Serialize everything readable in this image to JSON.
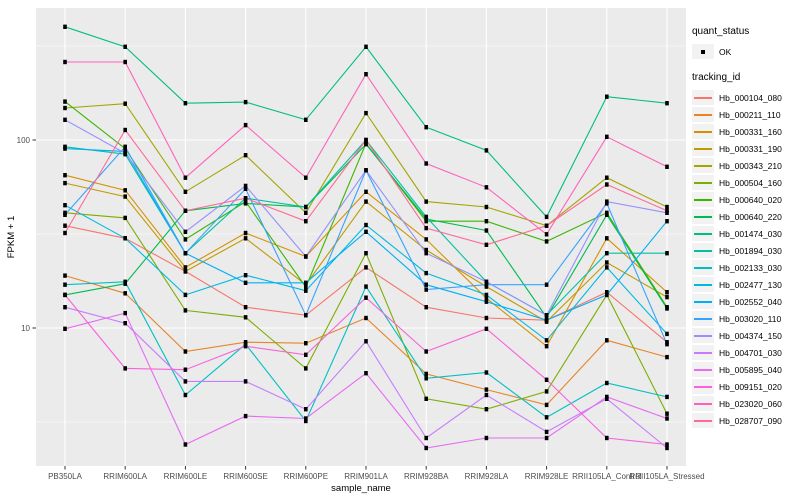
{
  "legend": {
    "quant_status_title": "quant_status",
    "quant_status_items": [
      {
        "label": "OK",
        "marker": "black-square"
      }
    ],
    "tracking_title": "tracking_id"
  },
  "chart_data": {
    "type": "line",
    "title": "",
    "xlabel": "sample_name",
    "ylabel": "FPKM + 1",
    "y_scale": "log10",
    "y_tick_values": [
      10,
      100
    ],
    "y_tick_labels": [
      "10",
      "100"
    ],
    "y_minor_gridlines": [
      3.162,
      31.623,
      316.228
    ],
    "ylim": [
      1.9,
      520
    ],
    "grid": true,
    "legend_position": "right",
    "point_marker": "filled-black-square",
    "panel_background": "#EBEBEB",
    "gridline_color": "#FFFFFF",
    "tick_label_color": "#4D4D4D",
    "categories": [
      "PB350LA",
      "RRIM600LA",
      "RRIM600LE",
      "RRIM600SE",
      "RRIM600PE",
      "RRIM901LA",
      "RRIM928BA",
      "RRIM928LA",
      "RRIM928LE",
      "RRII105LA_Control",
      "RRII105LA_Stressed"
    ],
    "series": [
      {
        "name": "Hb_000104_080",
        "color": "#F8766D",
        "values": [
          35,
          30,
          20,
          12.9,
          11.7,
          21,
          12.9,
          11.3,
          11,
          15.5,
          8.4
        ]
      },
      {
        "name": "Hb_000211_110",
        "color": "#E88526",
        "values": [
          19,
          15.3,
          7.5,
          8.4,
          8.3,
          11.3,
          5.7,
          4.7,
          3.9,
          8.6,
          7
        ]
      },
      {
        "name": "Hb_000331_160",
        "color": "#D89000",
        "values": [
          65,
          54,
          21,
          32,
          24,
          53,
          29.6,
          14.4,
          8,
          30,
          15.5
        ]
      },
      {
        "name": "Hb_000331_190",
        "color": "#C09B00",
        "values": [
          59,
          50,
          20,
          30,
          17,
          47,
          26,
          16.6,
          10.8,
          22.3,
          14.6
        ]
      },
      {
        "name": "Hb_000343_210",
        "color": "#A3A500",
        "values": [
          148,
          156,
          53,
          83,
          41,
          139,
          47,
          44,
          35,
          63,
          44
        ]
      },
      {
        "name": "Hb_000504_160",
        "color": "#7CAE00",
        "values": [
          41,
          38.5,
          12.4,
          11.4,
          6.1,
          25,
          4.2,
          3.7,
          4.6,
          15,
          3.5
        ]
      },
      {
        "name": "Hb_000640_020",
        "color": "#39B600",
        "values": [
          160,
          90,
          29.6,
          47,
          16.5,
          96,
          37,
          37,
          28.9,
          41,
          12.9
        ]
      },
      {
        "name": "Hb_000640_220",
        "color": "#00BB4E",
        "values": [
          15,
          17.2,
          42,
          46,
          44,
          95,
          38,
          33,
          11.4,
          40,
          12.7
        ]
      },
      {
        "name": "Hb_001474_030",
        "color": "#00BF7D",
        "values": [
          400,
          313,
          157,
          159,
          128,
          313,
          117,
          88,
          39,
          170,
          157
        ]
      },
      {
        "name": "Hb_001894_030",
        "color": "#00C1A3",
        "values": [
          92,
          84,
          25,
          49,
          44,
          100,
          39,
          17.6,
          11.7,
          25,
          25
        ]
      },
      {
        "name": "Hb_002133_030",
        "color": "#00BFC4",
        "values": [
          17,
          17.6,
          4.4,
          8.2,
          3.2,
          16.6,
          5.4,
          5.8,
          3.35,
          5.1,
          4.3
        ]
      },
      {
        "name": "Hb_002477_130",
        "color": "#00BAE0",
        "values": [
          45,
          30,
          15,
          19.1,
          15.8,
          35.3,
          19.6,
          15,
          8.6,
          21,
          9.3
        ]
      },
      {
        "name": "Hb_002552_040",
        "color": "#00B0F6",
        "values": [
          90,
          87,
          25,
          17.4,
          17.4,
          32.5,
          17,
          13.8,
          11,
          15,
          37
        ]
      },
      {
        "name": "Hb_003020_110",
        "color": "#35A2FF",
        "values": [
          40,
          92,
          25,
          55,
          11.7,
          69,
          16,
          17,
          17,
          46,
          8.2
        ]
      },
      {
        "name": "Hb_004374_150",
        "color": "#9590FF",
        "values": [
          128,
          85,
          32.5,
          57,
          24,
          69,
          25,
          17.6,
          11.7,
          47,
          41
        ]
      },
      {
        "name": "Hb_004701_030",
        "color": "#C77CFF",
        "values": [
          12.9,
          10.6,
          5.2,
          5.2,
          3.7,
          8.5,
          2.6,
          4.4,
          2.8,
          4.2,
          2.3
        ]
      },
      {
        "name": "Hb_005895_040",
        "color": "#E76BF3",
        "values": [
          9.9,
          12,
          2.4,
          3.4,
          3.3,
          5.75,
          2.3,
          2.6,
          2.6,
          4.3,
          3.3
        ]
      },
      {
        "name": "Hb_009151_020",
        "color": "#FA62DB",
        "values": [
          15,
          6.1,
          6,
          8,
          7.2,
          14.5,
          7.5,
          9.9,
          5.3,
          2.6,
          2.4
        ]
      },
      {
        "name": "Hb_023020_060",
        "color": "#FF62BC",
        "values": [
          260,
          260,
          63,
          120,
          63,
          224,
          75,
          56,
          31.5,
          104,
          72
        ]
      },
      {
        "name": "Hb_028707_090",
        "color": "#FF6A98",
        "values": [
          32,
          113,
          42,
          49,
          37,
          100,
          34,
          27.7,
          35,
          58,
          42
        ]
      }
    ]
  }
}
